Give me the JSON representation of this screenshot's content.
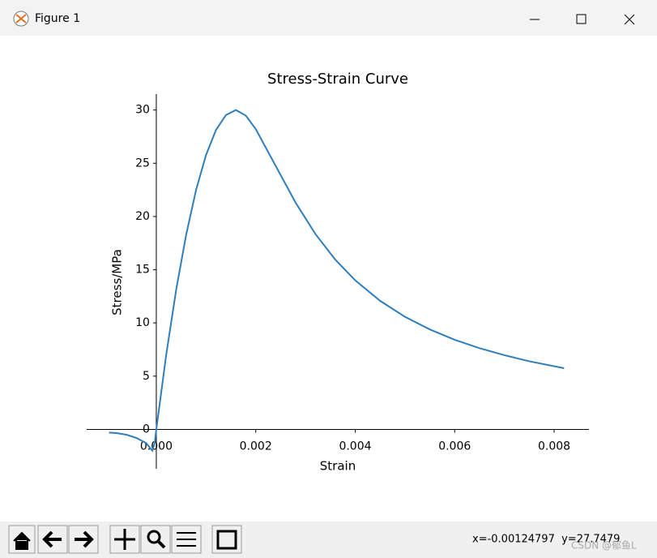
{
  "window": {
    "title": "Figure 1"
  },
  "chart_data": {
    "type": "line",
    "title": "Stress-Strain Curve",
    "x_label": "Strain",
    "y_label": "Stress/MPa",
    "x": [
      -0.00095,
      -0.0008,
      -0.0006,
      -0.0004,
      -0.0002,
      -8e-05,
      -3e-05,
      0,
      0.0002,
      0.0004,
      0.0006,
      0.0008,
      0.001,
      0.0012,
      0.0014,
      0.0016,
      0.0018,
      0.002,
      0.0024,
      0.0028,
      0.0032,
      0.0036,
      0.004,
      0.0045,
      0.005,
      0.0055,
      0.006,
      0.0065,
      0.007,
      0.0075,
      0.0082
    ],
    "values": [
      -0.3,
      -0.35,
      -0.5,
      -0.8,
      -1.3,
      -2.0,
      -1.2,
      0,
      7.03,
      13.13,
      18.28,
      22.5,
      25.78,
      28.13,
      29.53,
      30,
      29.48,
      28.21,
      24.76,
      21.31,
      18.35,
      15.94,
      14.0,
      12.08,
      10.58,
      9.39,
      8.42,
      7.63,
      6.97,
      6.4,
      5.75
    ],
    "color": "#2e7ebc",
    "xlim": [
      -0.0014,
      0.0087
    ],
    "ylim": [
      -3.7,
      31.5
    ],
    "xticks": [
      {
        "value": 0,
        "label": "0.000"
      },
      {
        "value": 0.002,
        "label": "0.002"
      },
      {
        "value": 0.004,
        "label": "0.004"
      },
      {
        "value": 0.006,
        "label": "0.006"
      },
      {
        "value": 0.008,
        "label": "0.008"
      }
    ],
    "yticks": [
      0,
      5,
      10,
      15,
      20,
      25,
      30
    ]
  },
  "status": "x=-0.00124797  y=27.7479",
  "watermark": "CSDN @郁鱼L"
}
